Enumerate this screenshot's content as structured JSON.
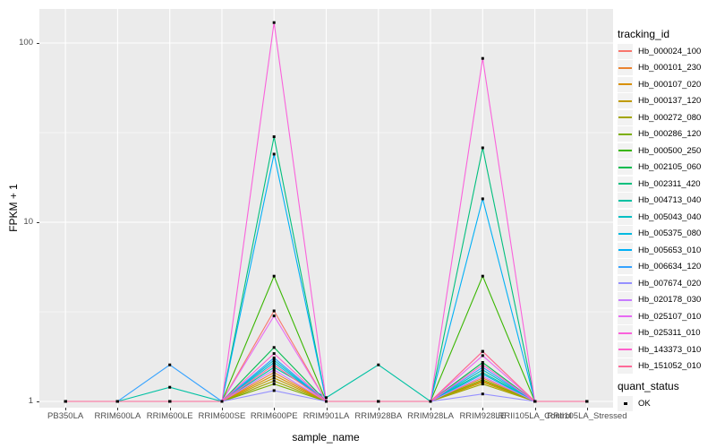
{
  "figure": {
    "background": "#FFFFFF",
    "panel_bg": "#EBEBEB",
    "grid_color": "#FFFFFF",
    "tick_color": "#333333",
    "tick_label_color": "#4D4D4D",
    "point_color": "#000000",
    "legend_key_bg": "#F2F2F2"
  },
  "chart_data": {
    "type": "line",
    "title": "",
    "xlabel": "sample_name",
    "ylabel": "FPKM + 1",
    "y_scale": "log10",
    "grid": true,
    "legend_position": "right",
    "ylim": [
      1,
      155
    ],
    "y_ticks": [
      {
        "label": "1",
        "value": 1
      },
      {
        "label": "10",
        "value": 10
      },
      {
        "label": "100",
        "value": 100
      }
    ],
    "categories": [
      "PB350LA",
      "RRIM600LA",
      "RRIM600LE",
      "RRIM600SE",
      "RRIM600PE",
      "RRIM901LA",
      "RRIM928BA",
      "RRIM928LA",
      "RRIM928LE",
      "RRII105LA_Control",
      "RRII105LA_Stressed"
    ],
    "legend_title": "tracking_id",
    "series": [
      {
        "name": "Hb_000024_100",
        "color": "#F8766D",
        "values": [
          1,
          1,
          1,
          1,
          3.2,
          1,
          1,
          1,
          1.9,
          1,
          1
        ]
      },
      {
        "name": "Hb_000101_230",
        "color": "#EA8331",
        "values": [
          1,
          1,
          1,
          1,
          1.45,
          1,
          1,
          1,
          1.35,
          1,
          1
        ]
      },
      {
        "name": "Hb_000107_020",
        "color": "#D89000",
        "values": [
          1,
          1,
          1,
          1,
          1.4,
          1,
          1,
          1,
          1.3,
          1,
          1
        ]
      },
      {
        "name": "Hb_000137_120",
        "color": "#C09B00",
        "values": [
          1,
          1,
          1,
          1,
          1.35,
          1,
          1,
          1,
          1.28,
          1,
          1
        ]
      },
      {
        "name": "Hb_000272_080",
        "color": "#A3A500",
        "values": [
          1,
          1,
          1,
          1,
          1.3,
          1,
          1,
          1,
          1.25,
          1,
          1
        ]
      },
      {
        "name": "Hb_000286_120",
        "color": "#7CAE00",
        "values": [
          1,
          1,
          1,
          1,
          1.25,
          1,
          1,
          1,
          1.32,
          1,
          1
        ]
      },
      {
        "name": "Hb_000500_250",
        "color": "#39B600",
        "values": [
          1,
          1,
          1,
          1,
          5,
          1,
          1,
          1,
          5,
          1,
          1
        ]
      },
      {
        "name": "Hb_002105_060",
        "color": "#00BB4E",
        "values": [
          1,
          1,
          1,
          1,
          2,
          1,
          1,
          1,
          1.65,
          1,
          1
        ]
      },
      {
        "name": "Hb_002311_420",
        "color": "#00BF7D",
        "values": [
          1,
          1,
          1,
          1,
          30,
          1,
          1,
          1,
          26,
          1,
          1
        ]
      },
      {
        "name": "Hb_004713_040",
        "color": "#00C1A3",
        "values": [
          1,
          1,
          1.2,
          1,
          1.55,
          1.05,
          1.6,
          1,
          1.45,
          1,
          1
        ]
      },
      {
        "name": "Hb_005043_040",
        "color": "#00BFC4",
        "values": [
          1,
          1,
          1,
          1,
          1.7,
          1,
          1,
          1,
          1.5,
          1,
          1
        ]
      },
      {
        "name": "Hb_005375_080",
        "color": "#00BAE0",
        "values": [
          1,
          1,
          1,
          1,
          1.65,
          1,
          1,
          1,
          1.42,
          1,
          1
        ]
      },
      {
        "name": "Hb_005653_010",
        "color": "#00B0F6",
        "values": [
          1,
          1,
          1,
          1,
          24,
          1,
          1,
          1,
          13.5,
          1,
          1
        ]
      },
      {
        "name": "Hb_006634_120",
        "color": "#35A2FF",
        "values": [
          1,
          1,
          1.6,
          1,
          1.75,
          1,
          1,
          1,
          1.55,
          1,
          1
        ]
      },
      {
        "name": "Hb_007674_020",
        "color": "#9590FF",
        "values": [
          1,
          1,
          1,
          1,
          1.15,
          1,
          1,
          1,
          1.1,
          1,
          1
        ]
      },
      {
        "name": "Hb_020178_030",
        "color": "#C77CFF",
        "values": [
          1,
          1,
          1,
          1,
          1.5,
          1,
          1,
          1,
          1.38,
          1,
          1
        ]
      },
      {
        "name": "Hb_025107_010",
        "color": "#E76BF3",
        "values": [
          1,
          1,
          1,
          1,
          3,
          1,
          1,
          1,
          1.8,
          1,
          1
        ]
      },
      {
        "name": "Hb_025311_010",
        "color": "#FA62DB",
        "values": [
          1,
          1,
          1,
          1,
          130,
          1,
          1,
          1,
          82,
          1,
          1
        ]
      },
      {
        "name": "Hb_143373_010",
        "color": "#FF61CC",
        "values": [
          1,
          1,
          1,
          1,
          1.85,
          1,
          1,
          1,
          1.6,
          1,
          1
        ]
      },
      {
        "name": "Hb_151052_010",
        "color": "#FF6A98",
        "values": [
          1,
          1,
          1,
          1,
          1.6,
          1,
          1,
          1,
          1.9,
          1,
          1
        ]
      }
    ],
    "quant_legend": {
      "title": "quant_status",
      "items": [
        {
          "label": "OK"
        }
      ]
    }
  }
}
